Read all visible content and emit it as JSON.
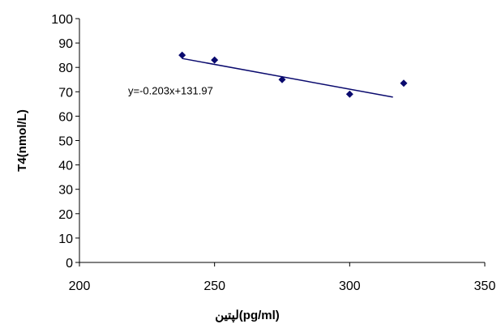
{
  "chart_data": {
    "type": "scatter",
    "xlabel": "لپتين(pg/ml)",
    "ylabel": "T4(nmol/L)",
    "xlim": [
      200,
      350
    ],
    "ylim": [
      0,
      100
    ],
    "xticks": [
      200,
      250,
      300,
      350
    ],
    "yticks": [
      0,
      10,
      20,
      30,
      40,
      50,
      60,
      70,
      80,
      90,
      100
    ],
    "grid": false,
    "points": [
      {
        "x": 238,
        "y": 85
      },
      {
        "x": 250,
        "y": 83
      },
      {
        "x": 275,
        "y": 75
      },
      {
        "x": 300,
        "y": 69
      },
      {
        "x": 320,
        "y": 73.5
      }
    ],
    "trendline": {
      "slope": -0.203,
      "intercept": 131.97,
      "x_range": [
        238,
        316
      ],
      "label": "y=-0.203x+131.97",
      "label_anchor": {
        "x": 218,
        "y": 69
      }
    },
    "marker_color": "#0a0a6e",
    "line_color": "#0a0a6e"
  }
}
